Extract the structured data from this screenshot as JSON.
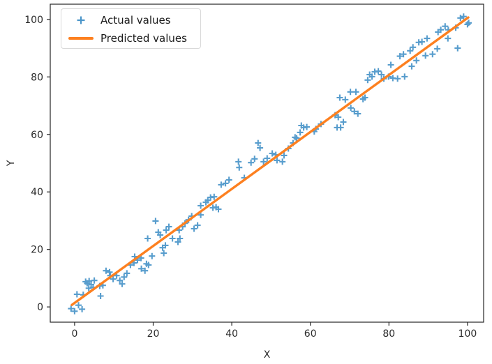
{
  "figure": {
    "background": "#ffffff"
  },
  "chart_data": {
    "type": "scatter",
    "title": "",
    "xlabel": "X",
    "ylabel": "Y",
    "xlim": [
      -6.2,
      104.1
    ],
    "ylim": [
      -5.3,
      105.3
    ],
    "x_ticks": [
      0,
      20,
      40,
      60,
      80,
      100
    ],
    "y_ticks": [
      0,
      20,
      40,
      60,
      80,
      100
    ],
    "grid": false,
    "axis_color": "#262626",
    "tick_label_color": "#2b2b2b",
    "legend": {
      "position": "upper left",
      "entries": [
        {
          "label": "Actual values",
          "marker": "plus",
          "color": "#4a95c9"
        },
        {
          "label": "Predicted values",
          "marker": "line",
          "color": "#fd8020"
        }
      ]
    },
    "series": [
      {
        "name": "Actual values",
        "type": "scatter",
        "marker": "plus",
        "color": "#4a95c9",
        "marker_size": 9,
        "points": [
          [
            -0.9,
            -0.6
          ],
          [
            0,
            -1.5
          ],
          [
            0.6,
            4.4
          ],
          [
            1,
            0.6
          ],
          [
            1.9,
            -0.8
          ],
          [
            2.2,
            4.2
          ],
          [
            2.8,
            8.8
          ],
          [
            3.2,
            8.2
          ],
          [
            3.6,
            6.5
          ],
          [
            3.7,
            9.0
          ],
          [
            4.2,
            7.8
          ],
          [
            4.7,
            6.8
          ],
          [
            5.0,
            9.2
          ],
          [
            6.4,
            7.3
          ],
          [
            6.6,
            3.8
          ],
          [
            7.2,
            7.5
          ],
          [
            8.0,
            12.6
          ],
          [
            8.9,
            12.1
          ],
          [
            9.1,
            10.9
          ],
          [
            9.8,
            9.7
          ],
          [
            10.7,
            10.9
          ],
          [
            11.5,
            9.2
          ],
          [
            12.1,
            8.0
          ],
          [
            12.6,
            10.4
          ],
          [
            13.3,
            11.7
          ],
          [
            14.2,
            14.6
          ],
          [
            15.1,
            15.3
          ],
          [
            15.3,
            17.5
          ],
          [
            16.0,
            16.3
          ],
          [
            16.9,
            17.0
          ],
          [
            17.0,
            13.3
          ],
          [
            17.9,
            12.6
          ],
          [
            18.3,
            15.0
          ],
          [
            18.8,
            14.6
          ],
          [
            19.7,
            17.7
          ],
          [
            18.6,
            23.8
          ],
          [
            20.6,
            29.9
          ],
          [
            21.3,
            26.0
          ],
          [
            21.8,
            25.0
          ],
          [
            22.4,
            20.6
          ],
          [
            22.7,
            18.7
          ],
          [
            23.1,
            21.4
          ],
          [
            23.3,
            26.7
          ],
          [
            24.0,
            27.9
          ],
          [
            24.9,
            23.8
          ],
          [
            26.3,
            22.6
          ],
          [
            26.6,
            26.7
          ],
          [
            26.8,
            23.8
          ],
          [
            27.5,
            27.9
          ],
          [
            28.1,
            29.1
          ],
          [
            29.0,
            30.3
          ],
          [
            29.8,
            31.6
          ],
          [
            30.4,
            27.2
          ],
          [
            31.3,
            28.4
          ],
          [
            32.1,
            32.0
          ],
          [
            32.1,
            35.2
          ],
          [
            33.4,
            36.4
          ],
          [
            33.9,
            37.1
          ],
          [
            34.6,
            38.1
          ],
          [
            35.2,
            34.5
          ],
          [
            35.5,
            38.3
          ],
          [
            36.0,
            34.7
          ],
          [
            36.6,
            34.0
          ],
          [
            37.3,
            42.5
          ],
          [
            38.4,
            43.0
          ],
          [
            39.3,
            44.2
          ],
          [
            41.7,
            50.5
          ],
          [
            41.9,
            48.5
          ],
          [
            43.2,
            44.9
          ],
          [
            44.9,
            50.2
          ],
          [
            45.8,
            51.5
          ],
          [
            46.7,
            57.0
          ],
          [
            47.2,
            55.3
          ],
          [
            48.1,
            50.5
          ],
          [
            49.0,
            51.7
          ],
          [
            50.3,
            53.4
          ],
          [
            51.2,
            52.9
          ],
          [
            51.5,
            51.0
          ],
          [
            52.9,
            50.5
          ],
          [
            53.3,
            52.7
          ],
          [
            54.4,
            55.1
          ],
          [
            55.6,
            57.0
          ],
          [
            56.1,
            59.0
          ],
          [
            56.5,
            58.7
          ],
          [
            57.4,
            60.7
          ],
          [
            57.7,
            63.1
          ],
          [
            58.3,
            62.4
          ],
          [
            59.1,
            62.6
          ],
          [
            61.0,
            61.0
          ],
          [
            61.4,
            61.9
          ],
          [
            62.7,
            63.6
          ],
          [
            66.3,
            66.7
          ],
          [
            66.8,
            62.4
          ],
          [
            67.1,
            66.0
          ],
          [
            67.7,
            62.4
          ],
          [
            67.5,
            72.8
          ],
          [
            68.4,
            64.3
          ],
          [
            68.9,
            72.1
          ],
          [
            70.2,
            74.8
          ],
          [
            70.3,
            69.2
          ],
          [
            71.2,
            68.0
          ],
          [
            71.6,
            74.8
          ],
          [
            72.1,
            67.2
          ],
          [
            73.4,
            72.3
          ],
          [
            73.9,
            72.8
          ],
          [
            74.6,
            78.9
          ],
          [
            75.1,
            80.8
          ],
          [
            75.7,
            80.1
          ],
          [
            76.4,
            81.8
          ],
          [
            77.3,
            82.0
          ],
          [
            78.1,
            80.8
          ],
          [
            78.7,
            79.4
          ],
          [
            79.9,
            80.1
          ],
          [
            80.5,
            84.2
          ],
          [
            81.0,
            79.6
          ],
          [
            82.2,
            79.4
          ],
          [
            82.8,
            87.2
          ],
          [
            83.7,
            87.9
          ],
          [
            84.0,
            80.1
          ],
          [
            85.4,
            89.1
          ],
          [
            85.8,
            83.7
          ],
          [
            86.1,
            90.3
          ],
          [
            87.0,
            85.7
          ],
          [
            87.6,
            92.0
          ],
          [
            88.4,
            92.2
          ],
          [
            89.3,
            87.4
          ],
          [
            89.7,
            93.4
          ],
          [
            91.1,
            87.9
          ],
          [
            92.3,
            89.8
          ],
          [
            92.5,
            95.6
          ],
          [
            93.2,
            96.4
          ],
          [
            94.3,
            97.6
          ],
          [
            95.0,
            93.4
          ],
          [
            95.1,
            96.4
          ],
          [
            97.0,
            97.1
          ],
          [
            97.5,
            90.0
          ],
          [
            98.2,
            100.5
          ],
          [
            99.0,
            101.0
          ],
          [
            100.0,
            98.3
          ],
          [
            100.3,
            98.8
          ]
        ]
      },
      {
        "name": "Predicted values",
        "type": "line",
        "color": "#fd8020",
        "line_width": 3.4,
        "points": [
          [
            -0.7,
            0.7
          ],
          [
            100.2,
            100.7
          ]
        ]
      }
    ]
  }
}
